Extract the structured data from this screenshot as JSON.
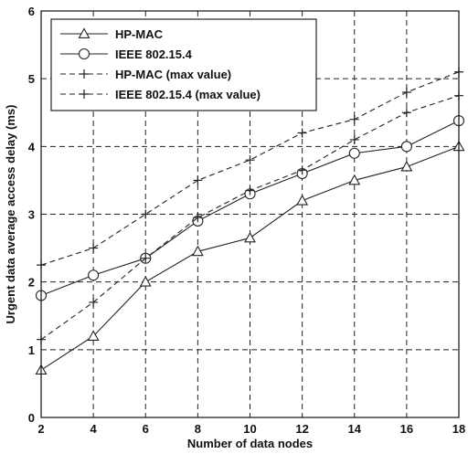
{
  "chart_data": {
    "type": "line",
    "xlabel": "Number of data nodes",
    "ylabel": "Urgent data average access delay (ms)",
    "xlim": [
      2,
      18
    ],
    "ylim": [
      0,
      6
    ],
    "grid": true,
    "legend_position": "top-left",
    "x_ticks": [
      "2",
      "4",
      "6",
      "8",
      "10",
      "12",
      "14",
      "16",
      "18"
    ],
    "y_ticks": [
      "0",
      "1",
      "2",
      "3",
      "4",
      "5",
      "6"
    ],
    "x": [
      2,
      4,
      6,
      8,
      10,
      12,
      14,
      16,
      18
    ],
    "series": [
      {
        "name": "HP-MAC",
        "line": "solid",
        "marker": "triangle",
        "color": "#222222",
        "values": [
          0.7,
          1.2,
          2.0,
          2.45,
          2.65,
          3.2,
          3.5,
          3.7,
          4.0
        ]
      },
      {
        "name": "IEEE 802.15.4",
        "line": "solid",
        "marker": "circle",
        "color": "#222222",
        "values": [
          1.8,
          2.1,
          2.35,
          2.9,
          3.3,
          3.6,
          3.9,
          4.0,
          4.38
        ]
      },
      {
        "name": "HP-MAC (max value)",
        "line": "dashed",
        "marker": "plus",
        "color": "#222222",
        "values": [
          1.15,
          1.7,
          2.35,
          2.95,
          3.35,
          3.65,
          4.1,
          4.5,
          4.75
        ]
      },
      {
        "name": "IEEE 802.15.4 (max value)",
        "line": "dashed",
        "marker": "plus",
        "color": "#222222",
        "values": [
          2.25,
          2.5,
          3.0,
          3.5,
          3.8,
          4.2,
          4.4,
          4.8,
          5.1
        ]
      }
    ]
  }
}
